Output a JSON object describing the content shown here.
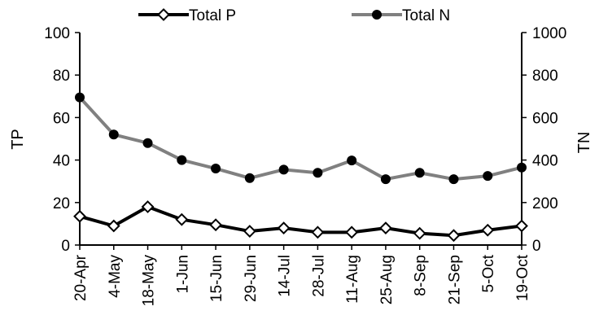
{
  "chart_data": {
    "type": "line",
    "categories": [
      "20-Apr",
      "4-May",
      "18-May",
      "1-Jun",
      "15-Jun",
      "29-Jun",
      "14-Jul",
      "28-Jul",
      "11-Aug",
      "25-Aug",
      "8-Sep",
      "21-Sep",
      "5-Oct",
      "19-Oct"
    ],
    "series": [
      {
        "name": "Total P",
        "axis": "left",
        "color": "#000000",
        "marker": "open-diamond",
        "values": [
          13.5,
          9,
          18,
          12,
          9.5,
          6.5,
          8,
          6,
          6,
          8,
          5.5,
          4.5,
          7,
          9
        ]
      },
      {
        "name": "Total N",
        "axis": "right",
        "color": "#808080",
        "marker": "filled-circle",
        "values": [
          695,
          520,
          480,
          400,
          360,
          315,
          355,
          340,
          398,
          310,
          340,
          310,
          325,
          365
        ]
      }
    ],
    "ylabel": "TP",
    "y2label": "TN",
    "ylim": [
      0,
      100
    ],
    "y2lim": [
      0,
      1000
    ],
    "yticks": [
      "0",
      "20",
      "40",
      "60",
      "80",
      "100"
    ],
    "y2ticks": [
      "0",
      "200",
      "400",
      "600",
      "800",
      "1000"
    ],
    "grid": false,
    "legend": "top"
  }
}
